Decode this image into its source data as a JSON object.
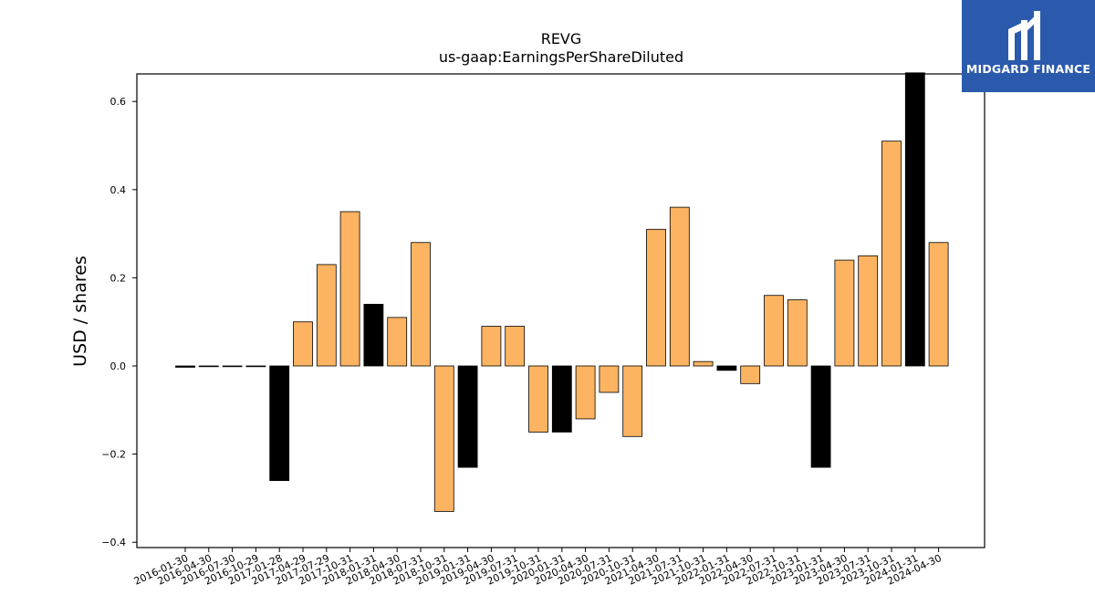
{
  "logo": {
    "text": "MIDGARD FINANCE",
    "background": "#2b5aac"
  },
  "chart_data": {
    "type": "bar",
    "title": "REVG",
    "subtitle": "us-gaap:EarningsPerShareDiluted",
    "ylabel": "USD / shares",
    "xlabel": "",
    "ylim": [
      -0.42,
      0.665
    ],
    "yticks": [
      -0.4,
      -0.2,
      0.0,
      0.2,
      0.4,
      0.6
    ],
    "grid": false,
    "colors": {
      "quarter": "#fdb462",
      "annual": "#000000"
    },
    "categories": [
      "2016-01-30",
      "2016-04-30",
      "2016-07-30",
      "2016-10-29",
      "2017-01-28",
      "2017-04-29",
      "2017-07-29",
      "2017-10-31",
      "2018-01-31",
      "2018-04-30",
      "2018-07-31",
      "2018-10-31",
      "2019-01-31",
      "2019-04-30",
      "2019-07-31",
      "2019-10-31",
      "2020-01-31",
      "2020-04-30",
      "2020-07-31",
      "2020-10-31",
      "2021-04-30",
      "2021-07-31",
      "2021-10-31",
      "2022-01-31",
      "2022-04-30",
      "2022-07-31",
      "2022-10-31",
      "2023-01-31",
      "2023-04-30",
      "2023-07-31",
      "2023-10-31",
      "2024-01-31",
      "2024-04-30"
    ],
    "values": [
      -0.003,
      0.0,
      0.0,
      0.0,
      -0.26,
      0.1,
      0.23,
      0.35,
      0.14,
      0.11,
      0.28,
      -0.33,
      -0.23,
      0.09,
      0.09,
      -0.15,
      -0.15,
      -0.12,
      -0.06,
      -0.16,
      0.31,
      0.36,
      0.01,
      -0.01,
      -0.04,
      0.16,
      0.15,
      -0.23,
      0.24,
      0.25,
      0.51,
      0.665,
      0.28
    ],
    "bar_kind": [
      "annual",
      "annual",
      "annual",
      "annual",
      "annual",
      "quarter",
      "quarter",
      "quarter",
      "annual",
      "quarter",
      "quarter",
      "quarter",
      "annual",
      "quarter",
      "quarter",
      "quarter",
      "annual",
      "quarter",
      "quarter",
      "quarter",
      "quarter",
      "quarter",
      "quarter",
      "annual",
      "quarter",
      "quarter",
      "quarter",
      "annual",
      "quarter",
      "quarter",
      "quarter",
      "annual",
      "quarter"
    ]
  }
}
